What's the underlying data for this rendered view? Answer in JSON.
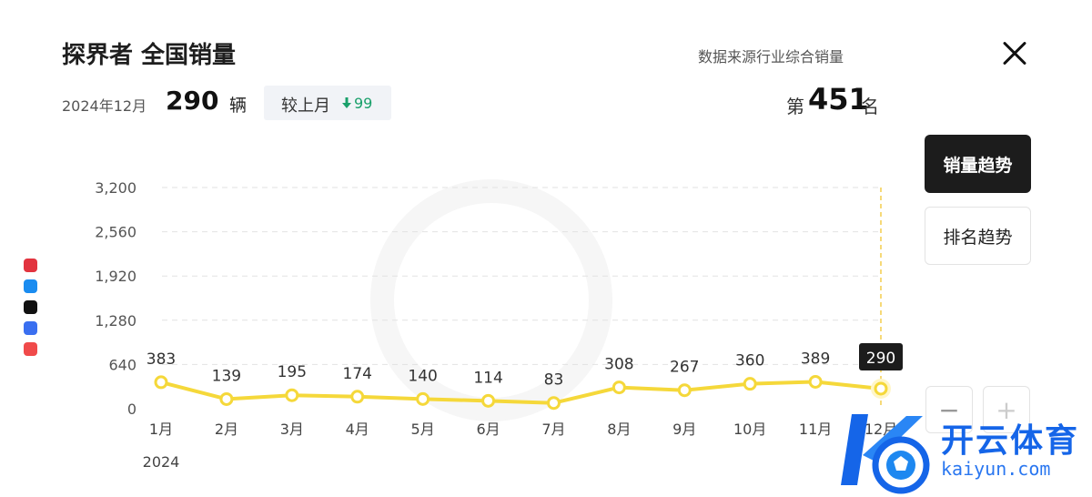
{
  "header": {
    "title": "探界者 全国销量",
    "source": "数据来源行业综合销量"
  },
  "summary": {
    "date": "2024年12月",
    "sales": "290",
    "unit": "辆",
    "compare_label": "较上月",
    "compare_value": "99",
    "rank_prefix": "第",
    "rank": "451",
    "rank_suffix": "名"
  },
  "buttons": {
    "sales_trend": "销量趋势",
    "rank_trend": "排名趋势",
    "zoom_out": "−",
    "zoom_in": "+"
  },
  "watermark": {
    "brand": "开云体育",
    "url": "kaiyun.com"
  },
  "colors": {
    "line": "#f5d83a",
    "up_down": "#1aa06b",
    "accent_dark": "#1c1c1c",
    "watermark": "#1565e8"
  },
  "chart_data": {
    "type": "line",
    "categories": [
      "1月",
      "2月",
      "3月",
      "4月",
      "5月",
      "6月",
      "7月",
      "8月",
      "9月",
      "10月",
      "11月",
      "12月"
    ],
    "series": [
      {
        "values": [
          383,
          139,
          195,
          174,
          140,
          114,
          83,
          308,
          267,
          360,
          389,
          290
        ]
      }
    ],
    "y_ticks": [
      "0",
      "640",
      "1,280",
      "1,920",
      "2,560",
      "3,200"
    ],
    "ylim": [
      0,
      3200
    ],
    "year_label": "2024",
    "highlight_index": 11,
    "highlight_label": "290",
    "grid": true
  }
}
